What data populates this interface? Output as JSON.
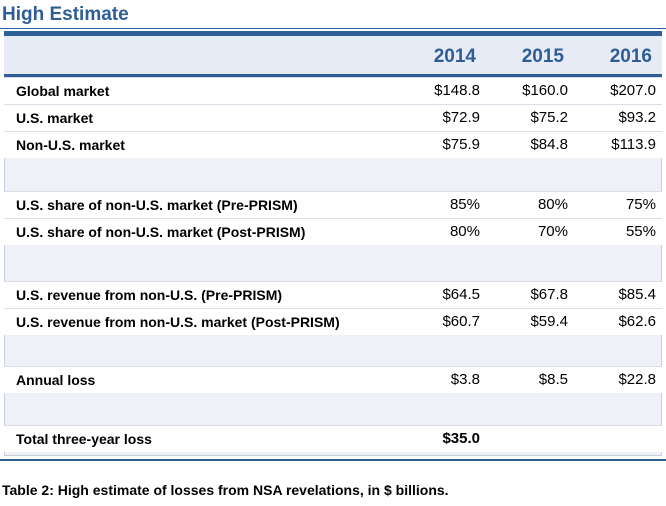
{
  "title": "High Estimate",
  "headers": [
    "",
    "2014",
    "2015",
    "2016"
  ],
  "rows": [
    {
      "label": "Global market",
      "v": [
        "$148.8",
        "$160.0",
        "$207.0"
      ]
    },
    {
      "label": "U.S. market",
      "v": [
        "$72.9",
        "$75.2",
        "$93.2"
      ]
    },
    {
      "label": "Non-U.S. market",
      "v": [
        "$75.9",
        "$84.8",
        "$113.9"
      ]
    },
    {
      "label": "U.S. share of non-U.S. market (Pre-PRISM)",
      "v": [
        "85%",
        "80%",
        "75%"
      ]
    },
    {
      "label": "U.S. share of non-U.S. market (Post-PRISM)",
      "v": [
        "80%",
        "70%",
        "55%"
      ]
    },
    {
      "label": "U.S. revenue from non-U.S. (Pre-PRISM)",
      "v": [
        "$64.5",
        "$67.8",
        "$85.4"
      ]
    },
    {
      "label": "U.S. revenue from non-U.S. market (Post-PRISM)",
      "v": [
        "$60.7",
        "$59.4",
        "$62.6"
      ]
    },
    {
      "label": "Annual loss",
      "v": [
        "$3.8",
        "$8.5",
        "$22.8"
      ]
    },
    {
      "label": "Total three-year loss",
      "v": [
        "$35.0",
        "",
        ""
      ]
    }
  ],
  "caption": "Table 2: High estimate of losses from NSA revelations, in $ billions."
}
